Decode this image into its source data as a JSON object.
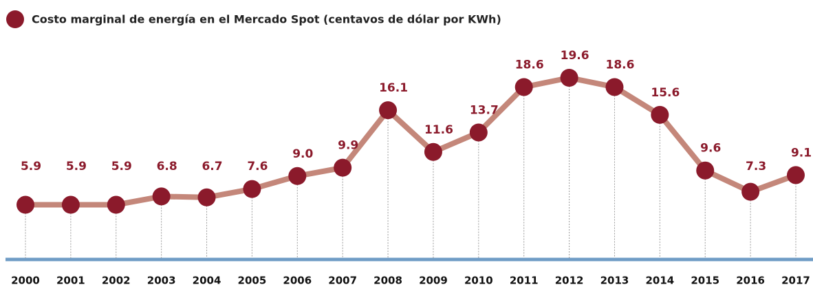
{
  "chart_data": {
    "type": "line",
    "title": "Costo marginal de energía en el Mercado Spot (centavos de dólar por KWh)",
    "categories": [
      "2000",
      "2001",
      "2002",
      "2003",
      "2004",
      "2005",
      "2006",
      "2007",
      "2008",
      "2009",
      "2010",
      "2011",
      "2012",
      "2013",
      "2014",
      "2015",
      "2016",
      "2017"
    ],
    "series": [
      {
        "name": "Costo marginal",
        "color": "#8b1a2b",
        "line_color": "#c4877a",
        "values": [
          5.9,
          5.9,
          5.9,
          6.8,
          6.7,
          7.6,
          9.0,
          9.9,
          16.1,
          11.6,
          13.7,
          18.6,
          19.6,
          18.6,
          15.6,
          9.6,
          7.3,
          9.1
        ],
        "value_labels": [
          "5.9",
          "5.9",
          "5.9",
          "6.8",
          "6.7",
          "7.6",
          "9.0",
          "9.9",
          "16.1",
          "11.6",
          "13.7",
          "18.6",
          "19.6",
          "18.6",
          "15.6",
          "9.6",
          "7.3",
          "9.1"
        ]
      }
    ]
  }
}
